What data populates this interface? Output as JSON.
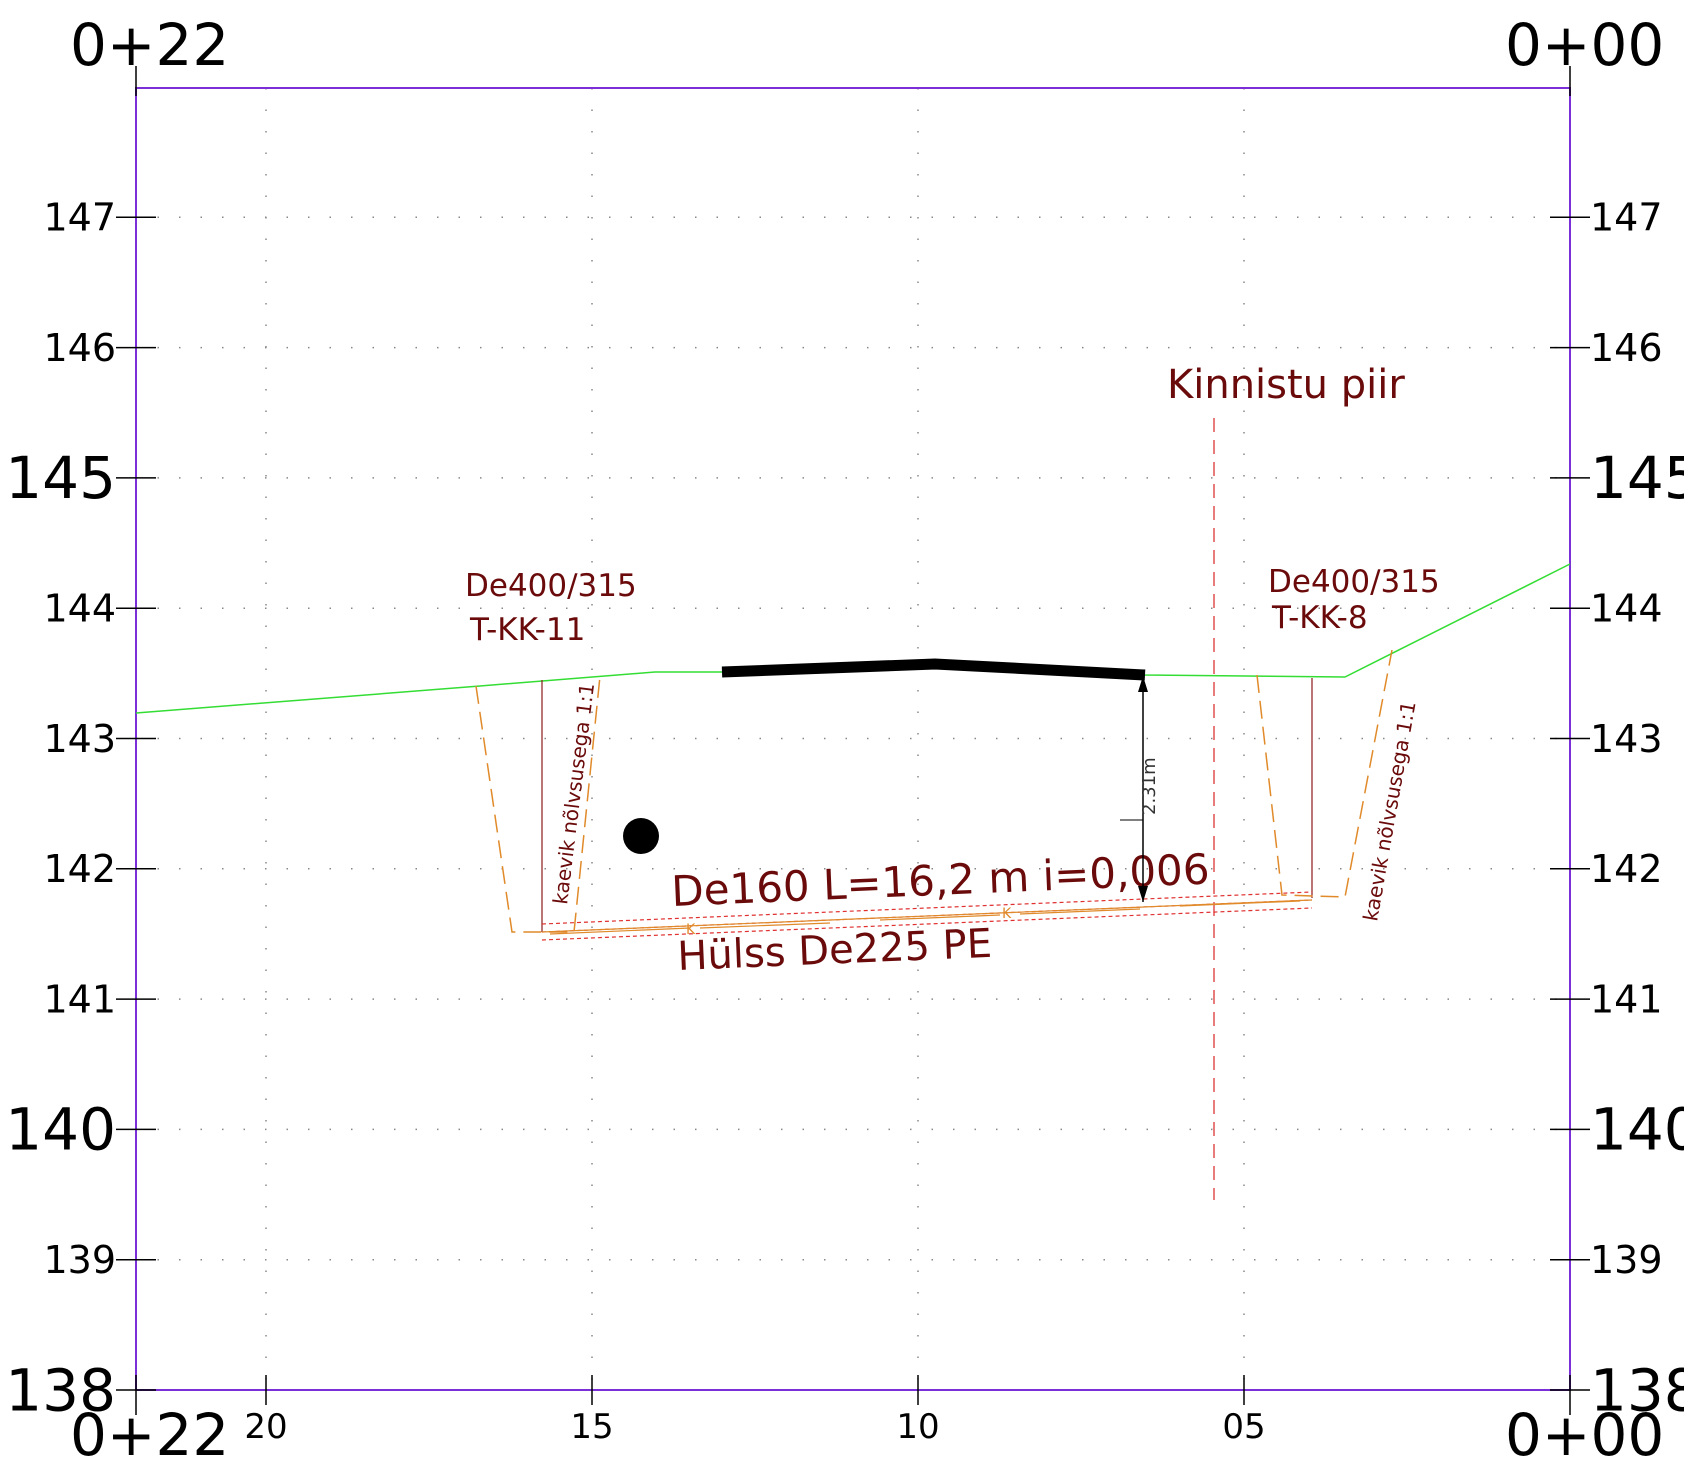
{
  "stations": {
    "left_top": "0+22",
    "right_top": "0+00",
    "left_bottom": "0+22",
    "right_bottom": "0+00"
  },
  "elevation_ticks": [
    "147",
    "146",
    "145",
    "144",
    "143",
    "142",
    "141",
    "140",
    "139",
    "138"
  ],
  "major_elevations": [
    "145",
    "140",
    "138"
  ],
  "chainage_ticks": [
    "20",
    "15",
    "10",
    "05"
  ],
  "labels": {
    "property_line": "Kinnistu piir",
    "left_manhole_size": "De400/315",
    "left_manhole_id": "T-KK-11",
    "right_manhole_size": "De400/315",
    "right_manhole_id": "T-KK-8",
    "left_trench": "kaevik nõlvsusega 1:1",
    "right_trench": "kaevik nõlvsusega 1:1",
    "pipe_spec": "De160 L=16,2 m i=0,006",
    "sleeve_spec": "Hülss De225 PE",
    "depth_dimension": "2.31m",
    "pipe_marker_left": "K",
    "pipe_marker_right": "K"
  },
  "colors": {
    "frame": "#7b2fd6",
    "ground": "#33dd33",
    "trench": "#e08a2a",
    "pipe": "#e03030",
    "annotation_text": "#6a0a0a",
    "property_line": "#e05050"
  }
}
